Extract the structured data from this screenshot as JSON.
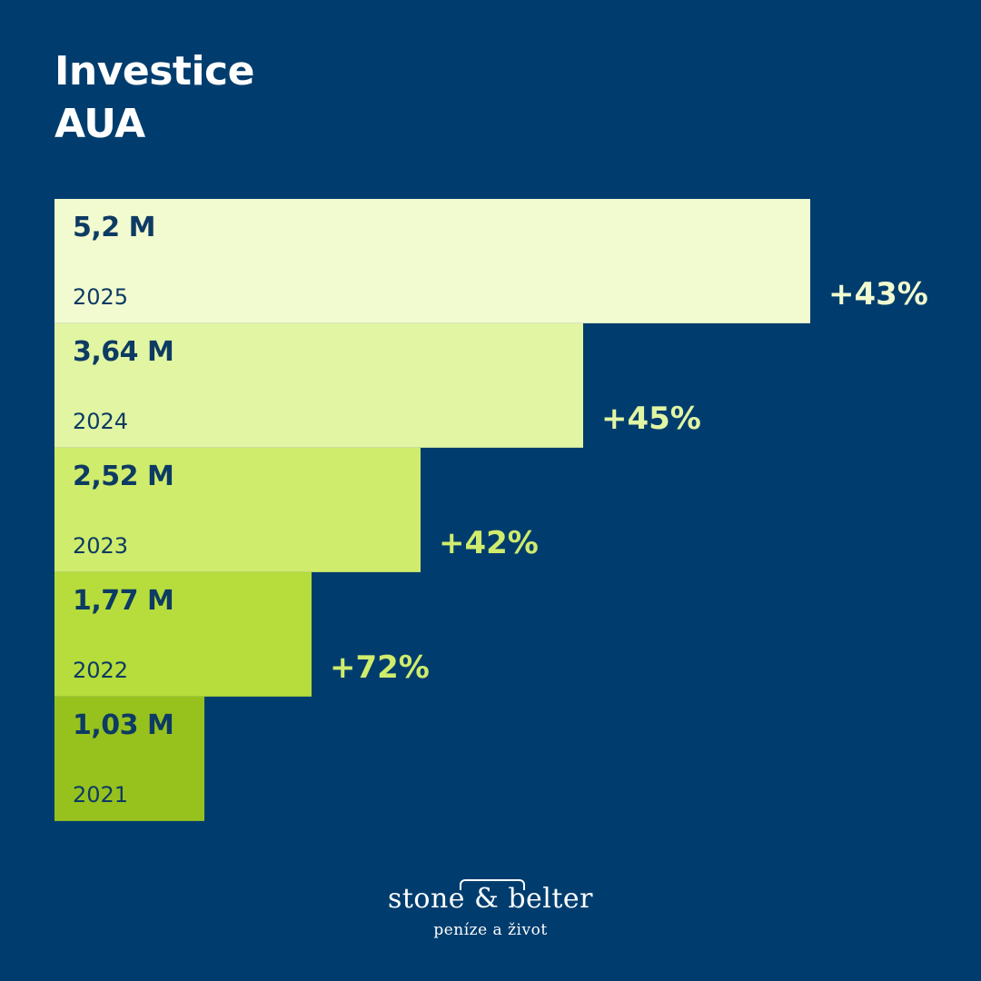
{
  "title": {
    "line1": "Investice",
    "line2": "AUA"
  },
  "colors": {
    "background": "#003d6e",
    "text_dark": "#0d3b63",
    "bar_2025": "#f2fbd0",
    "bar_2024": "#e2f5a3",
    "bar_2023": "#d0ec6c",
    "bar_2022": "#b6dd3b",
    "bar_2021": "#97c21e",
    "growth_light": "#f2fbd0",
    "growth_mid": "#e2f5a3",
    "growth_accent": "#d0ec6c"
  },
  "chart_data": {
    "type": "bar",
    "orientation": "horizontal",
    "title": "Investice AUA",
    "unit": "M",
    "categories": [
      "2025",
      "2024",
      "2023",
      "2022",
      "2021"
    ],
    "values": [
      5.2,
      3.64,
      2.52,
      1.77,
      1.03
    ],
    "value_labels": [
      "5,2 M",
      "3,64 M",
      "2,52 M",
      "1,77 M",
      "1,03 M"
    ],
    "growth_labels": [
      "+43%",
      "+45%",
      "+42%",
      "+72%"
    ],
    "xlim": [
      0,
      5.2
    ],
    "grid": false,
    "legend": "none"
  },
  "logo": {
    "name": "stone & belter",
    "tagline": "peníze a život"
  }
}
